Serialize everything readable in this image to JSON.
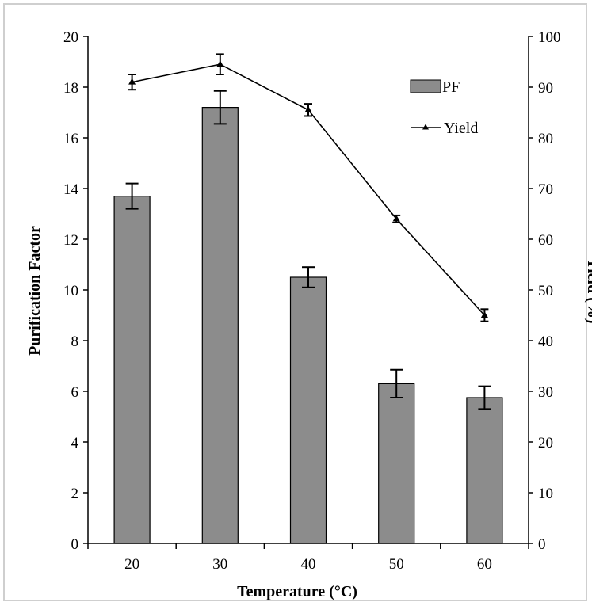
{
  "chart_data": {
    "type": "bar",
    "categories": [
      "20",
      "30",
      "40",
      "50",
      "60"
    ],
    "xlabel": "Temperature (°C)",
    "ylabel": "Purification Factor",
    "y2label": "Yield (%)",
    "ylim": [
      0,
      20
    ],
    "y2lim": [
      0,
      100
    ],
    "yticks": [
      "0",
      "2",
      "4",
      "6",
      "8",
      "10",
      "12",
      "14",
      "16",
      "18",
      "20"
    ],
    "y2ticks": [
      "0",
      "10",
      "20",
      "30",
      "40",
      "50",
      "60",
      "70",
      "80",
      "90",
      "100"
    ],
    "grid": false,
    "legend_position": "top-right",
    "series": [
      {
        "name": "PF",
        "type": "bar",
        "axis": "left",
        "color": "#8c8c8c",
        "values": [
          13.7,
          17.2,
          10.5,
          6.3,
          5.75
        ],
        "errors": [
          0.5,
          0.65,
          0.4,
          0.55,
          0.45
        ]
      },
      {
        "name": "Yield",
        "type": "line",
        "axis": "right",
        "color": "#000000",
        "marker": "triangle",
        "values": [
          91,
          94.5,
          85.5,
          64,
          45
        ],
        "errors": [
          1.5,
          2,
          1.2,
          0.7,
          1.2
        ]
      }
    ]
  }
}
